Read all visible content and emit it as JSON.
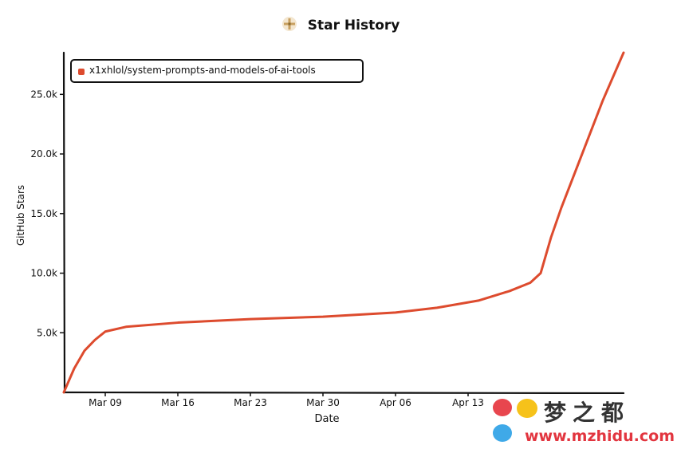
{
  "header": {
    "title": "Star History",
    "logo_icon": "star-history-logo-icon"
  },
  "watermark": {
    "chinese_text": "梦之都",
    "url": "www.mzhidu.com"
  },
  "chart_data": {
    "type": "line",
    "title": "Star History",
    "xlabel": "Date",
    "ylabel": "GitHub Stars",
    "x_tick_labels": [
      "Mar 09",
      "Mar 16",
      "Mar 23",
      "Mar 30",
      "Apr 06",
      "Apr 13"
    ],
    "y_tick_labels": [
      "5.0k",
      "10.0k",
      "15.0k",
      "20.0k",
      "25.0k"
    ],
    "y_ticks": [
      5000,
      10000,
      15000,
      20000,
      25000
    ],
    "ylim": [
      0,
      28500
    ],
    "legend_position": "top-left",
    "series": [
      {
        "name": "x1xhlol/system-prompts-and-models-of-ai-tools",
        "color": "#dd4b2e",
        "points": [
          [
            "2025-03-05",
            0
          ],
          [
            "2025-03-06",
            2000
          ],
          [
            "2025-03-07",
            3500
          ],
          [
            "2025-03-08",
            4400
          ],
          [
            "2025-03-09",
            5100
          ],
          [
            "2025-03-11",
            5500
          ],
          [
            "2025-03-16",
            5850
          ],
          [
            "2025-03-23",
            6150
          ],
          [
            "2025-03-30",
            6350
          ],
          [
            "2025-04-06",
            6700
          ],
          [
            "2025-04-10",
            7100
          ],
          [
            "2025-04-14",
            7700
          ],
          [
            "2025-04-17",
            8500
          ],
          [
            "2025-04-19",
            9200
          ],
          [
            "2025-04-20",
            10000
          ],
          [
            "2025-04-21",
            13000
          ],
          [
            "2025-04-22",
            15500
          ],
          [
            "2025-04-24",
            20000
          ],
          [
            "2025-04-26",
            24500
          ],
          [
            "2025-04-28",
            28500
          ]
        ]
      }
    ]
  }
}
